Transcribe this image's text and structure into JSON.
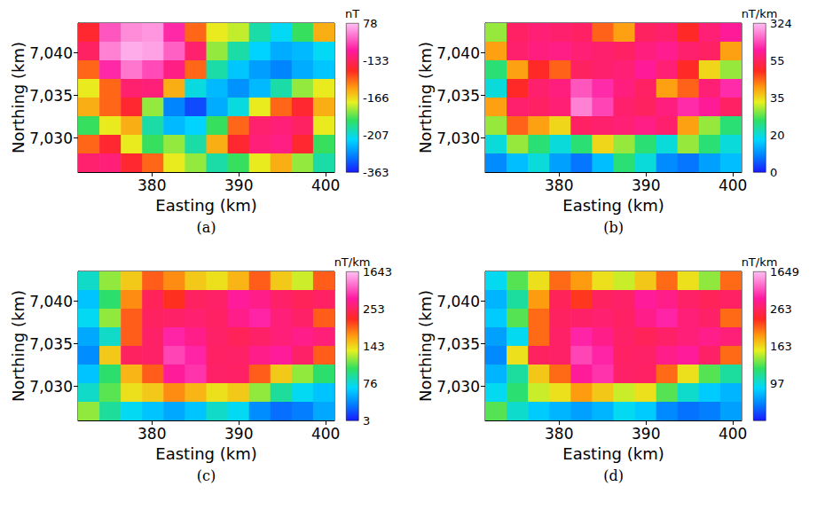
{
  "chart_data": [
    {
      "type": "heatmap",
      "title": "(a)",
      "xlabel": "Easting (km)",
      "ylabel": "Northing (km)",
      "xlim": [
        371.5,
        401
      ],
      "ylim": [
        7026,
        7043.5
      ],
      "xticks": [
        380,
        390,
        400
      ],
      "yticks": [
        7030,
        7035,
        7040
      ],
      "cells": {
        "x": [
          372.73,
          375.19,
          377.65,
          380.1,
          382.56,
          385.02,
          387.48,
          389.94,
          392.4,
          394.85,
          397.31,
          399.77
        ],
        "y": [
          7042.41,
          7040.22,
          7038.03,
          7035.84,
          7033.66,
          7031.47,
          7029.28,
          7027.09
        ],
        "values": [
          [
            -140,
            -20,
            30,
            40,
            -60,
            -150,
            -170,
            -175,
            -200,
            -220,
            -190,
            -160
          ],
          [
            -130,
            20,
            60,
            50,
            -10,
            -120,
            -180,
            -200,
            -230,
            -260,
            -250,
            -220
          ],
          [
            -150,
            -60,
            10,
            -30,
            -100,
            -150,
            -200,
            -240,
            -270,
            -290,
            -260,
            -240
          ],
          [
            -170,
            -150,
            -120,
            -110,
            -160,
            -210,
            -250,
            -280,
            -250,
            -200,
            -180,
            -170
          ],
          [
            -160,
            -150,
            -140,
            -180,
            -290,
            -330,
            -260,
            -210,
            -170,
            -150,
            -140,
            -160
          ],
          [
            -190,
            -170,
            -160,
            -200,
            -250,
            -230,
            -190,
            -150,
            -120,
            -110,
            -130,
            -170
          ],
          [
            -150,
            -140,
            -170,
            -190,
            -180,
            -200,
            -160,
            -140,
            -110,
            -100,
            -140,
            -190
          ],
          [
            -120,
            -110,
            -140,
            -150,
            -170,
            -180,
            -200,
            -190,
            -170,
            -160,
            -180,
            -200
          ]
        ]
      },
      "colorbar": {
        "label": "nT",
        "range": [
          -363,
          78
        ],
        "ticks": [
          -363,
          -207,
          -166,
          -133,
          78
        ]
      }
    },
    {
      "type": "heatmap",
      "title": "(b)",
      "xlabel": "Easting (km)",
      "ylabel": "Northing (km)",
      "xlim": [
        371.5,
        401
      ],
      "ylim": [
        7026,
        7043.5
      ],
      "xticks": [
        380,
        390,
        400
      ],
      "yticks": [
        7030,
        7035,
        7040
      ],
      "cells": {
        "x": [
          372.73,
          375.19,
          377.65,
          380.1,
          382.56,
          385.02,
          387.48,
          389.94,
          392.4,
          394.85,
          397.31,
          399.77
        ],
        "y": [
          7042.41,
          7040.22,
          7038.03,
          7035.84,
          7033.66,
          7031.47,
          7029.28,
          7027.09
        ],
        "values": [
          [
            30,
            60,
            80,
            70,
            60,
            45,
            40,
            55,
            70,
            50,
            80,
            120
          ],
          [
            40,
            70,
            90,
            100,
            80,
            70,
            60,
            90,
            110,
            70,
            60,
            40
          ],
          [
            25,
            40,
            50,
            45,
            55,
            70,
            80,
            120,
            80,
            50,
            35,
            30
          ],
          [
            20,
            50,
            70,
            90,
            200,
            150,
            90,
            60,
            40,
            45,
            80,
            150
          ],
          [
            40,
            70,
            60,
            80,
            250,
            180,
            70,
            55,
            90,
            150,
            120,
            60
          ],
          [
            30,
            45,
            40,
            35,
            60,
            70,
            80,
            100,
            70,
            40,
            30,
            25
          ],
          [
            20,
            30,
            25,
            20,
            25,
            35,
            30,
            25,
            20,
            30,
            25,
            20
          ],
          [
            10,
            15,
            20,
            12,
            8,
            15,
            25,
            20,
            10,
            8,
            12,
            15
          ]
        ]
      },
      "colorbar": {
        "label": "nT/km",
        "range": [
          0,
          324
        ],
        "ticks": [
          0,
          20,
          35,
          55,
          324
        ]
      }
    },
    {
      "type": "heatmap",
      "title": "(c)",
      "xlabel": "Easting (km)",
      "ylabel": "Northing (km)",
      "xlim": [
        371.5,
        401
      ],
      "ylim": [
        7026,
        7043.5
      ],
      "xticks": [
        380,
        390,
        400
      ],
      "yticks": [
        7030,
        7035,
        7040
      ],
      "cells": {
        "x": [
          372.73,
          375.19,
          377.65,
          380.1,
          382.56,
          385.02,
          387.48,
          389.94,
          392.4,
          394.85,
          397.31,
          399.77
        ],
        "y": [
          7042.41,
          7040.22,
          7038.03,
          7035.84,
          7033.66,
          7031.47,
          7029.28,
          7027.09
        ],
        "values": [
          [
            80,
            120,
            150,
            200,
            180,
            150,
            140,
            160,
            200,
            150,
            130,
            200
          ],
          [
            60,
            100,
            180,
            250,
            220,
            260,
            300,
            600,
            500,
            300,
            250,
            280
          ],
          [
            70,
            120,
            200,
            260,
            300,
            350,
            280,
            500,
            700,
            400,
            300,
            200
          ],
          [
            50,
            80,
            200,
            300,
            700,
            500,
            300,
            250,
            300,
            400,
            500,
            400
          ],
          [
            40,
            150,
            260,
            300,
            900,
            700,
            280,
            300,
            500,
            600,
            300,
            200
          ],
          [
            60,
            100,
            160,
            200,
            600,
            800,
            300,
            280,
            200,
            150,
            120,
            100
          ],
          [
            80,
            110,
            140,
            150,
            180,
            160,
            140,
            150,
            120,
            90,
            70,
            60
          ],
          [
            120,
            90,
            70,
            60,
            50,
            60,
            80,
            70,
            40,
            30,
            35,
            50
          ]
        ]
      },
      "colorbar": {
        "label": "nT/km",
        "range": [
          3,
          1643
        ],
        "ticks": [
          3,
          76,
          143,
          253,
          1643
        ]
      }
    },
    {
      "type": "heatmap",
      "title": "(d)",
      "xlabel": "Easting (km)",
      "ylabel": "Northing (km)",
      "xlim": [
        371.5,
        401
      ],
      "ylim": [
        7026,
        7043.5
      ],
      "xticks": [
        380,
        390,
        400
      ],
      "yticks": [
        7030,
        7035,
        7040
      ],
      "cells": {
        "x": [
          372.73,
          375.19,
          377.65,
          380.1,
          382.56,
          385.02,
          387.48,
          389.94,
          392.4,
          394.85,
          397.31,
          399.77
        ],
        "y": [
          7042.41,
          7040.22,
          7038.03,
          7035.84,
          7033.66,
          7031.47,
          7029.28,
          7027.09
        ],
        "values": [
          [
            90,
            130,
            160,
            210,
            190,
            160,
            150,
            170,
            210,
            160,
            140,
            210
          ],
          [
            70,
            110,
            190,
            260,
            230,
            270,
            310,
            610,
            510,
            310,
            260,
            290
          ],
          [
            80,
            130,
            210,
            270,
            310,
            360,
            290,
            510,
            710,
            410,
            310,
            210
          ],
          [
            60,
            90,
            210,
            310,
            710,
            510,
            310,
            260,
            310,
            410,
            510,
            410
          ],
          [
            50,
            160,
            270,
            310,
            910,
            710,
            290,
            310,
            510,
            610,
            310,
            210
          ],
          [
            70,
            110,
            170,
            210,
            610,
            810,
            310,
            290,
            210,
            160,
            130,
            110
          ],
          [
            90,
            120,
            150,
            160,
            190,
            170,
            150,
            160,
            130,
            100,
            80,
            70
          ],
          [
            130,
            100,
            80,
            70,
            60,
            70,
            90,
            80,
            50,
            40,
            45,
            60
          ]
        ]
      },
      "colorbar": {
        "label": "nT/km",
        "range": [
          5,
          1649
        ],
        "ticks": [
          97,
          163,
          263,
          1649
        ]
      }
    }
  ]
}
